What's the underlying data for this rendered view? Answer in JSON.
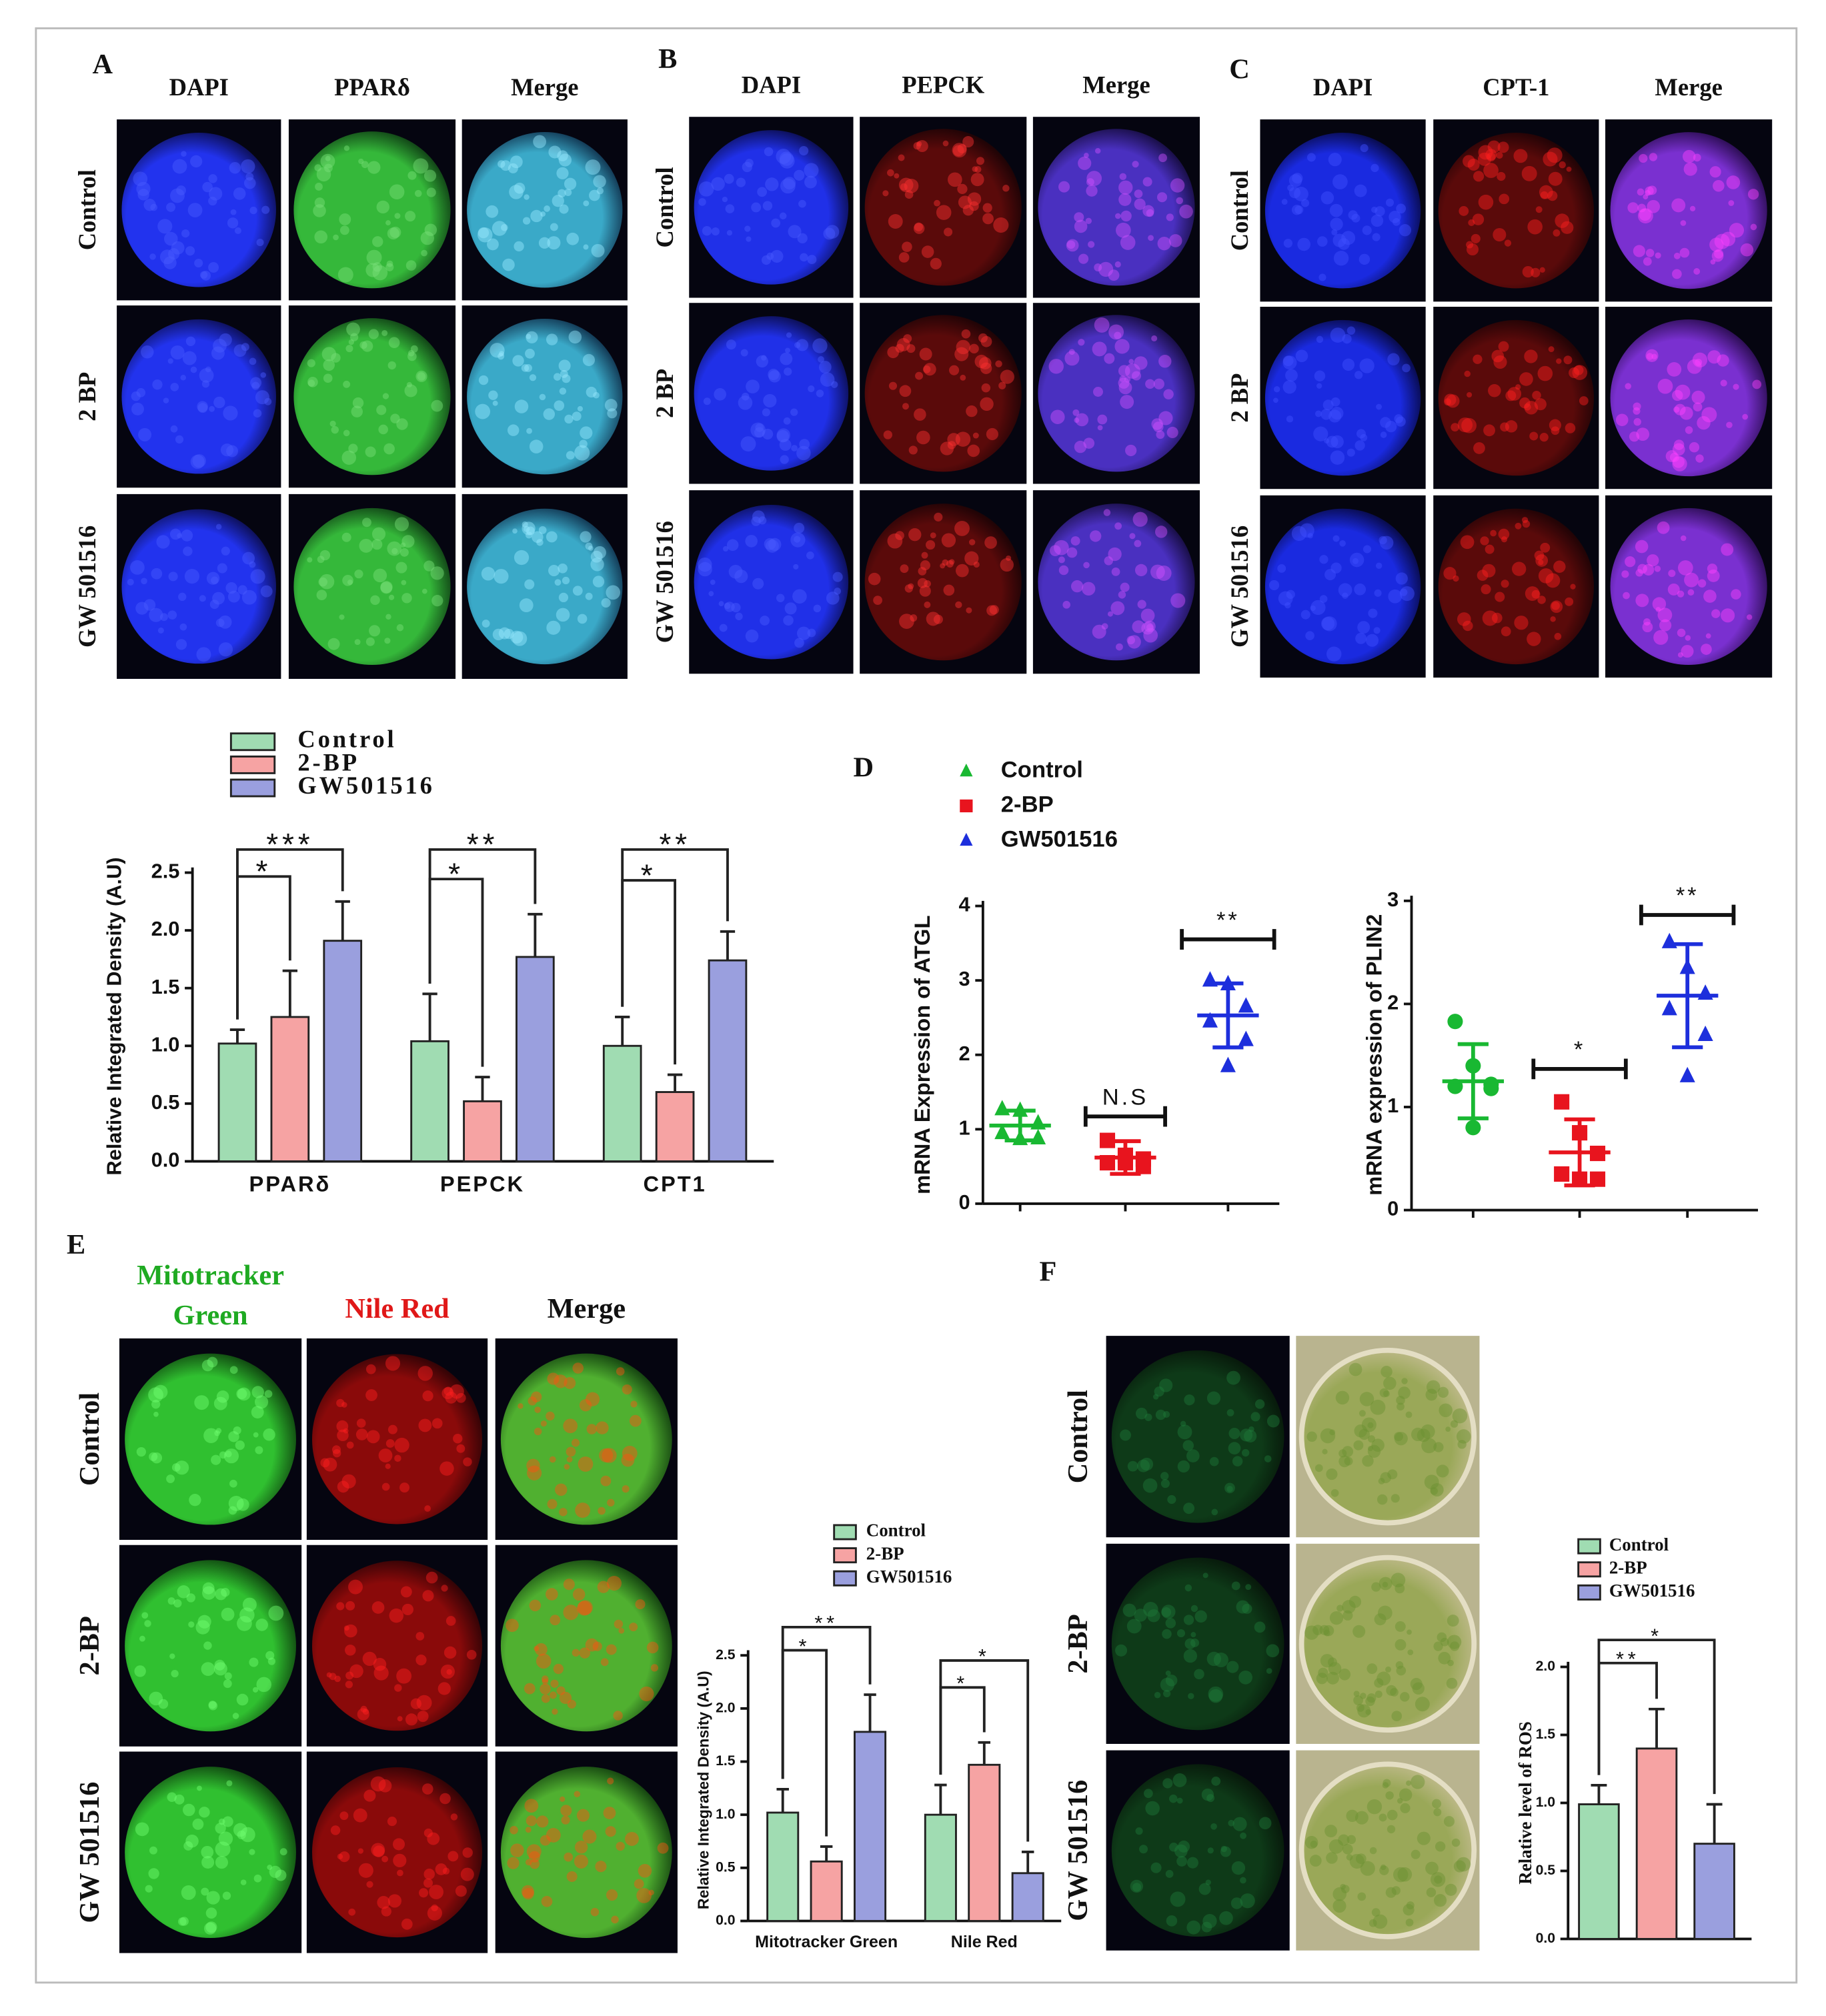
{
  "panels": [
    {
      "label": "A",
      "columns": [
        "DAPI",
        "PPARδ",
        "Merge"
      ],
      "rows": [
        "Control",
        "2 BP",
        "GW 501516"
      ]
    },
    {
      "label": "B",
      "columns": [
        "DAPI",
        "PEPCK",
        "Merge"
      ],
      "rows": [
        "Control",
        "2 BP",
        "GW 501516"
      ]
    },
    {
      "label": "C",
      "columns": [
        "DAPI",
        "CPT-1",
        "Merge"
      ],
      "rows": [
        "Control",
        "2 BP",
        "GW 501516"
      ]
    },
    {
      "label": "D"
    },
    {
      "label": "E",
      "columns": [
        "Mitotracker Green",
        "Nile Red",
        "Merge"
      ],
      "rows": [
        "Control",
        "2-BP",
        "GW 501516"
      ]
    },
    {
      "label": "F",
      "rows": [
        "Control",
        "2-BP",
        "GW 501516"
      ]
    }
  ],
  "chart_data": [
    {
      "type": "bar",
      "ylabel": "Relative Integrated Density (A.U)",
      "categories": [
        "PPARδ",
        "PEPCK",
        "CPT1"
      ],
      "series": [
        {
          "name": "Control",
          "color": "#a0dcb2",
          "values": [
            1.02,
            1.04,
            1.0
          ],
          "errors": [
            0.12,
            0.41,
            0.25
          ]
        },
        {
          "name": "2-BP",
          "color": "#f6a3a3",
          "values": [
            1.25,
            0.52,
            0.6
          ],
          "errors": [
            0.4,
            0.21,
            0.15
          ]
        },
        {
          "name": "GW501516",
          "color": "#9a9fde",
          "values": [
            1.91,
            1.77,
            1.74
          ],
          "errors": [
            0.34,
            0.37,
            0.25
          ]
        }
      ],
      "ylim": [
        0,
        2.5
      ],
      "yticks": [
        {
          "value": 0,
          "label": "0.0"
        },
        0.5,
        {
          "value": 1,
          "label": "1.0"
        },
        1.5,
        {
          "value": 2,
          "label": "2.0"
        },
        2.5
      ],
      "annotations": [
        "*",
        "***",
        "*",
        "**",
        "*",
        "**"
      ],
      "legend": "top-left"
    },
    {
      "type": "scatter",
      "ylabel": "mRNA Expression of ATGL",
      "series": [
        {
          "name": "Control",
          "color": "#19b832",
          "marker": "triangle",
          "values": [
            1.27,
            1.25,
            1.08,
            0.95,
            0.88,
            0.87
          ],
          "mean": 1.05,
          "sd": 0.2
        },
        {
          "name": "2-BP",
          "color": "#e8141e",
          "marker": "square",
          "values": [
            0.85,
            0.65,
            0.6,
            0.55,
            0.5,
            0.55
          ],
          "mean": 0.62,
          "sd": 0.22
        },
        {
          "name": "GW501516",
          "color": "#1d2fdc",
          "marker": "triangle",
          "values": [
            3.0,
            2.95,
            2.65,
            2.45,
            2.2,
            1.85
          ],
          "mean": 2.53,
          "sd": 0.43
        }
      ],
      "ylim": [
        0,
        4
      ],
      "yticks": [
        0,
        1,
        2,
        3,
        4
      ],
      "annotations": [
        "N.S",
        "**"
      ],
      "legend": "top-left"
    },
    {
      "type": "scatter",
      "ylabel": "mRNA expression of PLIN2",
      "series": [
        {
          "color": "#19b832",
          "marker": "circle",
          "values": [
            1.83,
            1.4,
            1.22,
            1.2,
            1.18,
            0.8
          ],
          "mean": 1.25,
          "sd": 0.36
        },
        {
          "color": "#e8141e",
          "marker": "square",
          "values": [
            1.05,
            0.75,
            0.55,
            0.35,
            0.3,
            0.3
          ],
          "mean": 0.56,
          "sd": 0.32
        },
        {
          "color": "#1d2fdc",
          "marker": "triangle",
          "values": [
            2.6,
            2.35,
            2.1,
            1.95,
            1.7,
            1.3
          ],
          "mean": 2.08,
          "sd": 0.5
        }
      ],
      "ylim": [
        0,
        3
      ],
      "yticks": [
        0,
        1,
        2,
        3
      ],
      "annotations": [
        "*",
        "**"
      ]
    },
    {
      "type": "bar",
      "ylabel": "Relative Integrated Density (A.U)",
      "categories": [
        "Mitotracker Green",
        "Nile Red"
      ],
      "series": [
        {
          "name": "Control",
          "color": "#a0dcb2",
          "values": [
            1.02,
            1.0
          ],
          "errors": [
            0.22,
            0.28
          ]
        },
        {
          "name": "2-BP",
          "color": "#f6a3a3",
          "values": [
            0.56,
            1.47
          ],
          "errors": [
            0.14,
            0.21
          ]
        },
        {
          "name": "GW501516",
          "color": "#9a9fde",
          "values": [
            1.78,
            0.45
          ],
          "errors": [
            0.35,
            0.2
          ]
        }
      ],
      "ylim": [
        0,
        2.5
      ],
      "yticks": [
        {
          "value": 0,
          "label": "0.0"
        },
        0.5,
        {
          "value": 1,
          "label": "1.0"
        },
        1.5,
        {
          "value": 2,
          "label": "2.0"
        },
        2.5
      ],
      "annotations": [
        "*",
        "**",
        "*",
        "*"
      ],
      "legend": "top-left"
    },
    {
      "type": "bar",
      "ylabel": "Relative level of ROS",
      "categories": [
        null
      ],
      "series": [
        {
          "name": "Control",
          "color": "#a0dcb2",
          "values": [
            0.99
          ],
          "errors": [
            0.14
          ]
        },
        {
          "name": "2-BP",
          "color": "#f6a3a3",
          "values": [
            1.4
          ],
          "errors": [
            0.29
          ]
        },
        {
          "name": "GW501516",
          "color": "#9a9fde",
          "values": [
            0.7
          ],
          "errors": [
            0.29
          ]
        }
      ],
      "ylim": [
        0,
        2
      ],
      "yticks": [
        {
          "value": 0,
          "label": "0.0"
        },
        0.5,
        {
          "value": 1,
          "label": "1.0"
        },
        1.5,
        {
          "value": 2,
          "label": "2.0"
        }
      ],
      "annotations": [
        "**",
        "*"
      ],
      "legend": "top-left"
    }
  ]
}
